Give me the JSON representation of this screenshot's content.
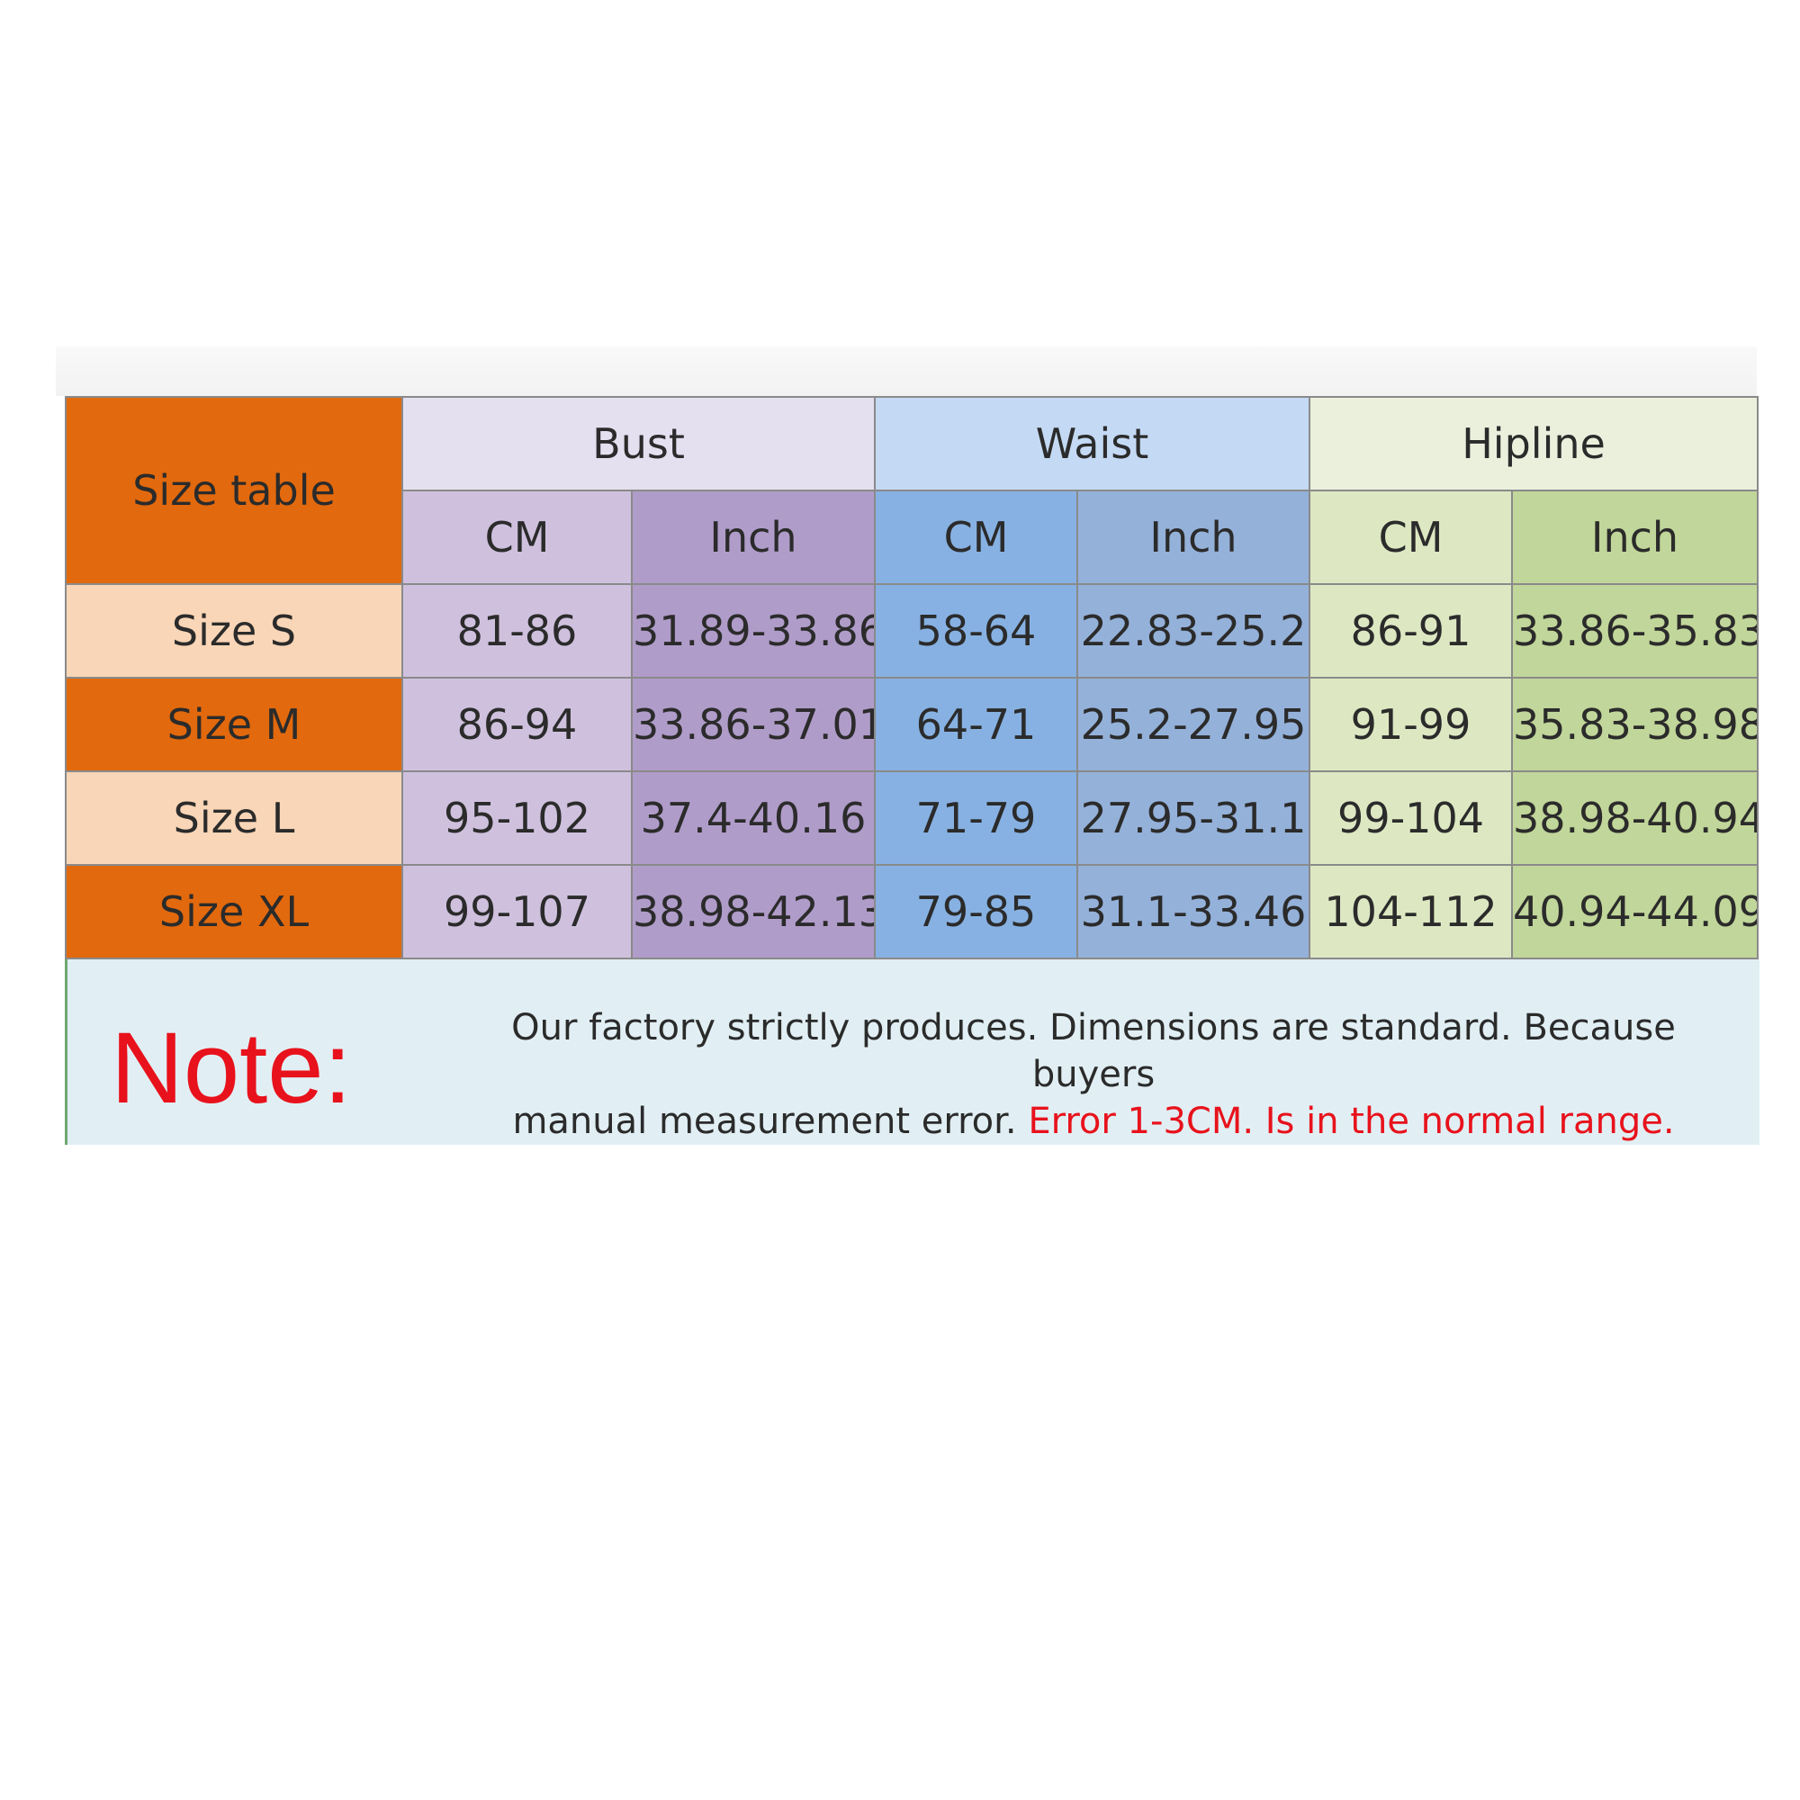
{
  "table": {
    "corner_label": "Size table",
    "groups": [
      {
        "name": "Bust",
        "units": [
          "CM",
          "Inch"
        ]
      },
      {
        "name": "Waist",
        "units": [
          "CM",
          "Inch"
        ]
      },
      {
        "name": "Hipline",
        "units": [
          "CM",
          "Inch"
        ]
      }
    ],
    "rows": [
      {
        "size": "Size S",
        "bust_cm": "81-86",
        "bust_inch": "31.89-33.86",
        "waist_cm": "58-64",
        "waist_inch": "22.83-25.2",
        "hip_cm": "86-91",
        "hip_inch": "33.86-35.83"
      },
      {
        "size": "Size M",
        "bust_cm": "86-94",
        "bust_inch": "33.86-37.01",
        "waist_cm": "64-71",
        "waist_inch": "25.2-27.95",
        "hip_cm": "91-99",
        "hip_inch": "35.83-38.98"
      },
      {
        "size": "Size L",
        "bust_cm": "95-102",
        "bust_inch": "37.4-40.16",
        "waist_cm": "71-79",
        "waist_inch": "27.95-31.1",
        "hip_cm": "99-104",
        "hip_inch": "38.98-40.94"
      },
      {
        "size": "Size XL",
        "bust_cm": "99-107",
        "bust_inch": "38.98-42.13",
        "waist_cm": "79-85",
        "waist_inch": "31.1-33.46",
        "hip_cm": "104-112",
        "hip_inch": "40.94-44.09"
      }
    ]
  },
  "note": {
    "label": "Note:",
    "text_line1": "Our factory strictly produces. Dimensions are standard. Because buyers",
    "text_line2": "manual measurement error.",
    "text_warning": "Error 1-3CM. Is in the normal range."
  },
  "colors": {
    "label_orange": "#e2690d",
    "label_peach": "#f9d6b7",
    "note_red": "#e8121c"
  }
}
